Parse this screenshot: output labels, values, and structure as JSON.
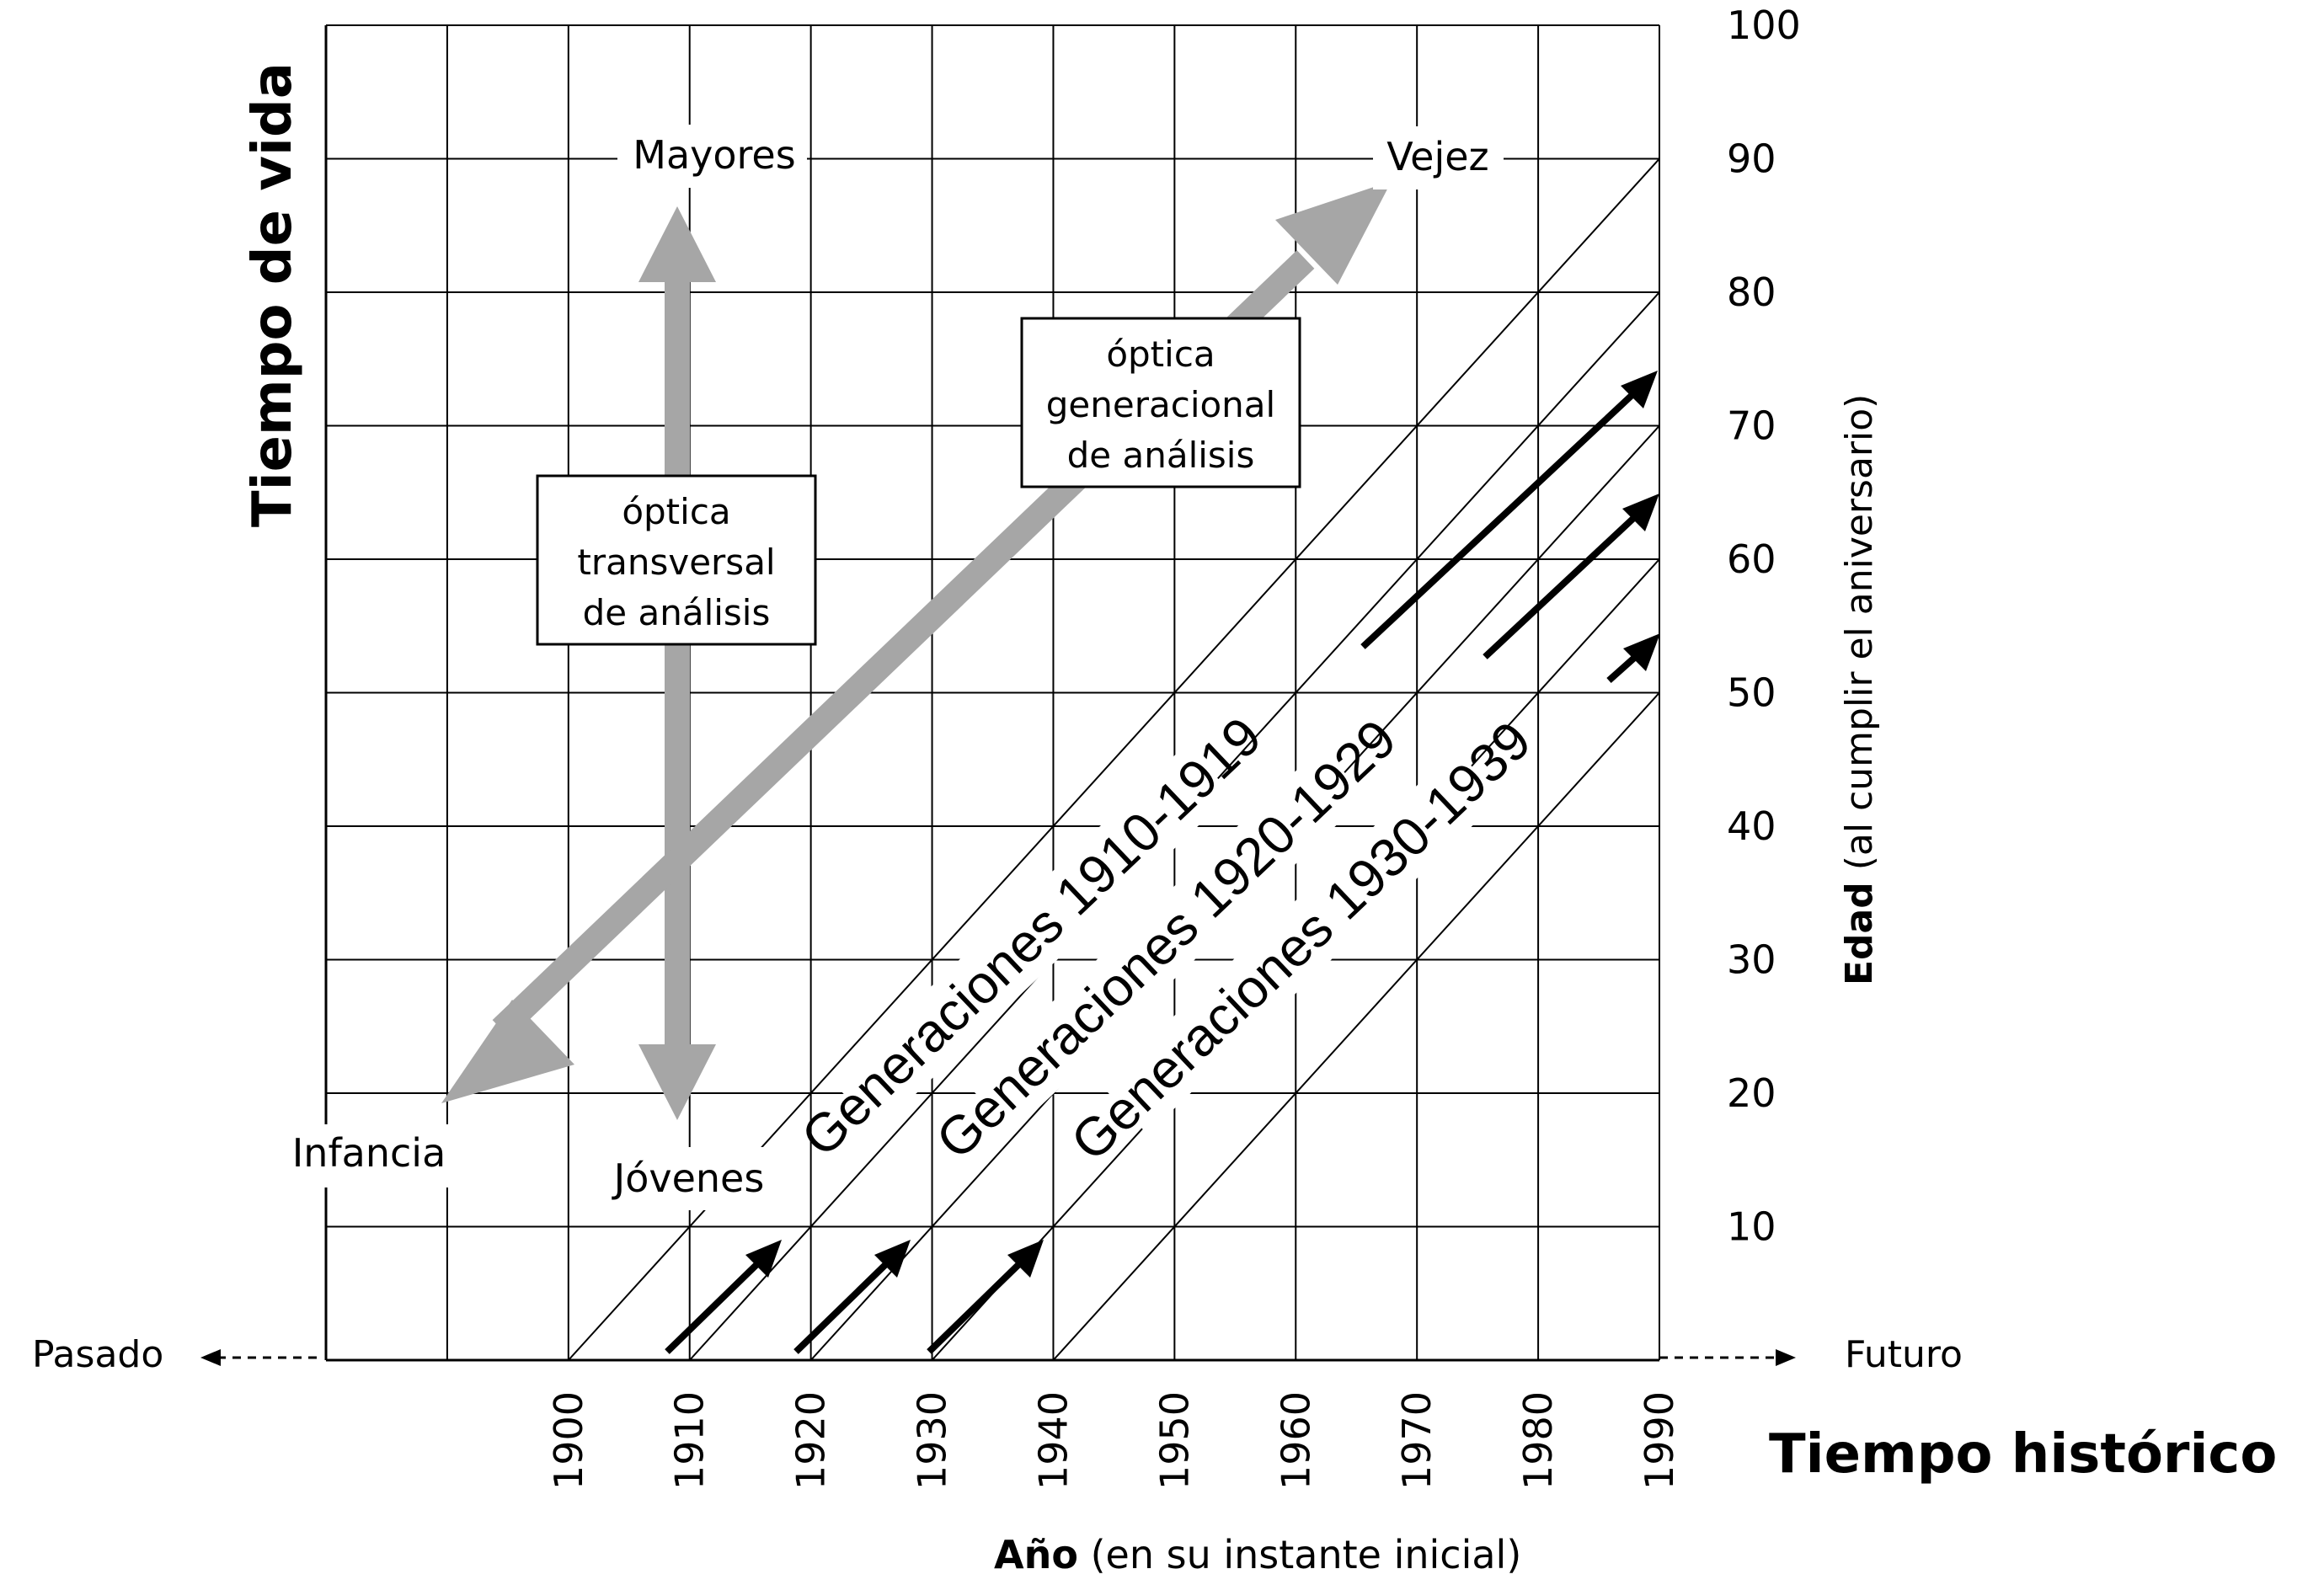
{
  "chart_data": {
    "type": "lexis-diagram",
    "x_axis": {
      "title_main": "Tiempo histórico",
      "label_bold": "Año",
      "label_rest": " (en su instante inicial)",
      "ticks": [
        "1900",
        "1910",
        "1920",
        "1930",
        "1940",
        "1950",
        "1960",
        "1970",
        "1980",
        "1990"
      ],
      "left_label": "Pasado",
      "right_label": "Futuro",
      "range": [
        1880,
        1990
      ]
    },
    "y_axis": {
      "title_main": "Tiempo de vida",
      "label_bold": "Edad",
      "label_rest": " (al cumplir el aniversario)",
      "ticks": [
        "10",
        "20",
        "30",
        "40",
        "50",
        "60",
        "70",
        "80",
        "90",
        "100"
      ],
      "range": [
        0,
        100
      ]
    },
    "life_stages": {
      "mayores": "Mayores",
      "vejez": "Vejez",
      "infancia": "Infancia",
      "jovenes": "Jóvenes"
    },
    "boxes": {
      "transversal": [
        "óptica",
        "transversal",
        "de análisis"
      ],
      "generacional": [
        "óptica",
        "generacional",
        "de análisis"
      ]
    },
    "generations": [
      {
        "label": "Generaciones 1910-1919",
        "start": 1910,
        "end": 1920
      },
      {
        "label": "Generaciones 1920-1929",
        "start": 1920,
        "end": 1930
      },
      {
        "label": "Generaciones 1930-1939",
        "start": 1930,
        "end": 1940
      }
    ],
    "colors": {
      "grid": "#000000",
      "arrow_gray": "#a6a6a6",
      "text": "#000000"
    }
  }
}
